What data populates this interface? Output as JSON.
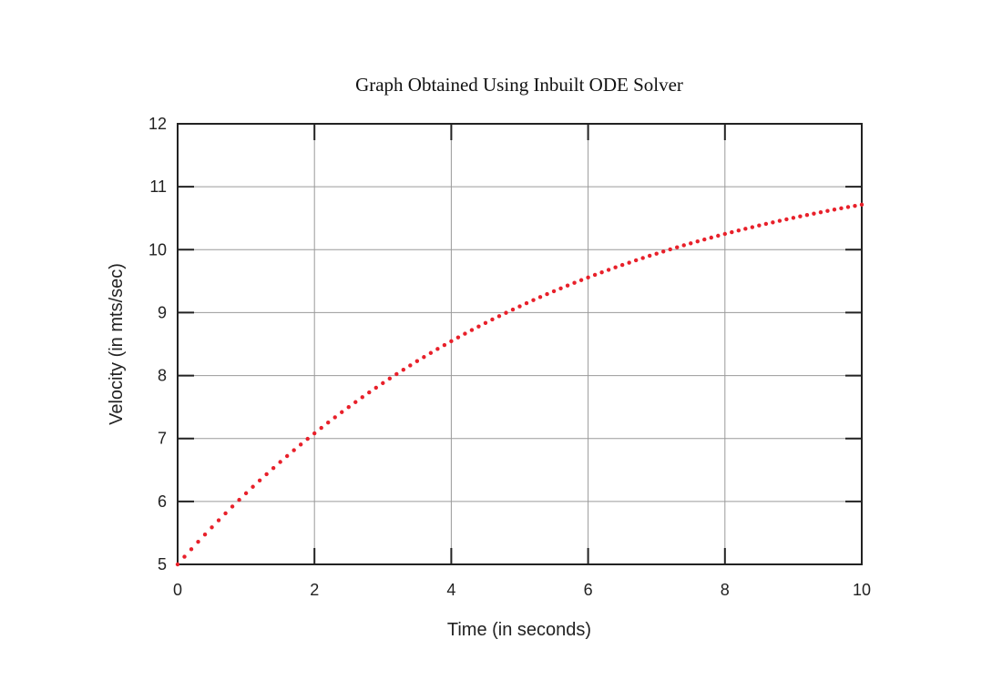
{
  "chart_data": {
    "type": "scatter",
    "title": "Graph Obtained Using Inbuilt ODE Solver",
    "xlabel": "Time (in seconds)",
    "ylabel": "Velocity (in mts/sec)",
    "xlim": [
      0,
      10
    ],
    "ylim": [
      5,
      12
    ],
    "xticks": [
      "0",
      "2",
      "4",
      "6",
      "8",
      "10"
    ],
    "yticks": [
      "5",
      "6",
      "7",
      "8",
      "9",
      "10",
      "11",
      "12"
    ],
    "grid": true,
    "legend": "none",
    "series": [
      {
        "color": "#e8202a",
        "marker": "dot",
        "x": [
          0,
          0.1,
          0.2,
          0.3,
          0.4,
          0.5,
          0.6,
          0.7,
          0.8,
          0.9,
          1.0,
          1.1,
          1.2,
          1.3,
          1.4,
          1.5,
          1.6,
          1.7,
          1.8,
          1.9,
          2.0,
          2.1,
          2.2,
          2.3,
          2.4,
          2.5,
          2.6,
          2.7,
          2.8,
          2.9,
          3.0,
          3.1,
          3.2,
          3.3,
          3.4,
          3.5,
          3.6,
          3.7,
          3.8,
          3.9,
          4.0,
          4.1,
          4.2,
          4.3,
          4.4,
          4.5,
          4.6,
          4.7,
          4.8,
          4.9,
          5.0,
          5.1,
          5.2,
          5.3,
          5.4,
          5.5,
          5.6,
          5.7,
          5.8,
          5.9,
          6.0,
          6.1,
          6.2,
          6.3,
          6.4,
          6.5,
          6.6,
          6.7,
          6.8,
          6.9,
          7.0,
          7.1,
          7.2,
          7.3,
          7.4,
          7.5,
          7.6,
          7.7,
          7.8,
          7.9,
          8.0,
          8.1,
          8.2,
          8.3,
          8.4,
          8.5,
          8.6,
          8.7,
          8.8,
          8.9,
          9.0,
          9.1,
          9.2,
          9.3,
          9.4,
          9.5,
          9.6,
          9.7,
          9.8,
          9.9,
          10.0
        ],
        "y": [
          5.0,
          5.122,
          5.241,
          5.359,
          5.475,
          5.589,
          5.701,
          5.811,
          5.919,
          6.025,
          6.13,
          6.233,
          6.334,
          6.433,
          6.531,
          6.627,
          6.721,
          6.814,
          6.905,
          6.994,
          7.082,
          7.169,
          7.253,
          7.337,
          7.419,
          7.499,
          7.578,
          7.656,
          7.732,
          7.807,
          7.88,
          7.953,
          8.024,
          8.093,
          8.161,
          8.229,
          8.294,
          8.359,
          8.423,
          8.485,
          8.546,
          8.606,
          8.665,
          8.723,
          8.78,
          8.836,
          8.891,
          8.944,
          8.997,
          9.049,
          9.1,
          9.15,
          9.199,
          9.247,
          9.294,
          9.34,
          9.385,
          9.43,
          9.473,
          9.516,
          9.558,
          9.6,
          9.64,
          9.68,
          9.719,
          9.757,
          9.794,
          9.831,
          9.867,
          9.903,
          9.937,
          9.971,
          10.005,
          10.037,
          10.07,
          10.101,
          10.132,
          10.162,
          10.192,
          10.221,
          10.25,
          10.278,
          10.305,
          10.332,
          10.358,
          10.384,
          10.41,
          10.434,
          10.459,
          10.483,
          10.506,
          10.529,
          10.551,
          10.573,
          10.595,
          10.616,
          10.637,
          10.657,
          10.677,
          10.696,
          10.715
        ]
      }
    ]
  }
}
